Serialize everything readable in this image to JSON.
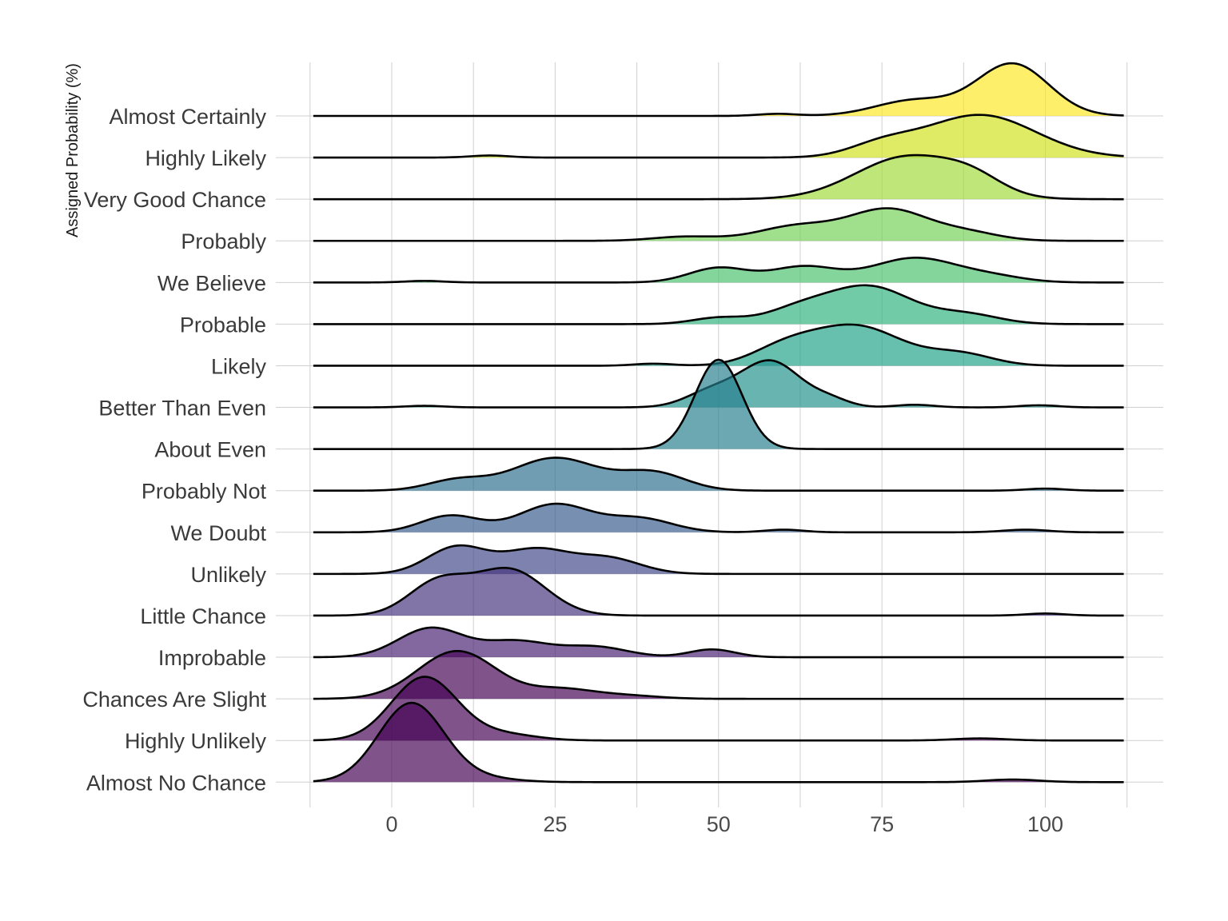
{
  "chart_data": {
    "type": "ridgeline",
    "title": "",
    "xlabel": "",
    "ylabel": "Assigned Probability (%)",
    "xlim": [
      -12,
      112
    ],
    "x_ticks": [
      0,
      25,
      50,
      75,
      100
    ],
    "x_minor_gridlines": [
      -12.5,
      12.5,
      37.5,
      62.5,
      87.5,
      112.5
    ],
    "grid": true,
    "legend": "none",
    "palette": "viridis",
    "fill_opacity": 0.68,
    "series": [
      {
        "name": "Almost Certainly",
        "color": "#FDE725",
        "peaks": [
          [
            59,
            0.04,
            3
          ],
          [
            80,
            0.3,
            6
          ],
          [
            95,
            1.0,
            5.5
          ]
        ]
      },
      {
        "name": "Highly Likely",
        "color": "#D0E11C",
        "peaks": [
          [
            15,
            0.04,
            3
          ],
          [
            75,
            0.22,
            5
          ],
          [
            90,
            0.82,
            8.5
          ]
        ]
      },
      {
        "name": "Very Good Chance",
        "color": "#A0DA39",
        "peaks": [
          [
            79,
            0.82,
            8
          ],
          [
            89,
            0.25,
            4.5
          ]
        ]
      },
      {
        "name": "Probably",
        "color": "#73D056",
        "peaks": [
          [
            45,
            0.08,
            5
          ],
          [
            62,
            0.28,
            6
          ],
          [
            76,
            0.6,
            6
          ],
          [
            88,
            0.15,
            5
          ]
        ]
      },
      {
        "name": "We Believe",
        "color": "#4AC16D",
        "peaks": [
          [
            5,
            0.03,
            3
          ],
          [
            50,
            0.28,
            4.5
          ],
          [
            63,
            0.3,
            5
          ],
          [
            80,
            0.47,
            6.5
          ],
          [
            92,
            0.1,
            5
          ]
        ]
      },
      {
        "name": "Probable",
        "color": "#2DB27D",
        "peaks": [
          [
            50,
            0.12,
            4
          ],
          [
            62,
            0.25,
            5
          ],
          [
            73,
            0.72,
            6.5
          ],
          [
            88,
            0.18,
            5
          ]
        ]
      },
      {
        "name": "Likely",
        "color": "#1FA187",
        "peaks": [
          [
            40,
            0.04,
            3
          ],
          [
            60,
            0.3,
            5
          ],
          [
            71,
            0.76,
            7
          ],
          [
            87,
            0.22,
            5
          ]
        ]
      },
      {
        "name": "Better Than Even",
        "color": "#21918C",
        "peaks": [
          [
            5,
            0.03,
            3
          ],
          [
            49,
            0.3,
            4
          ],
          [
            58,
            0.88,
            4.5
          ],
          [
            67,
            0.14,
            3
          ],
          [
            80,
            0.05,
            3
          ],
          [
            99,
            0.04,
            3
          ]
        ]
      },
      {
        "name": "About Even",
        "color": "#277F8E",
        "peaks": [
          [
            50,
            1.72,
            3.6
          ]
        ]
      },
      {
        "name": "Probably Not",
        "color": "#2E6E8E",
        "peaks": [
          [
            10,
            0.2,
            4.5
          ],
          [
            25,
            0.63,
            6.5
          ],
          [
            40,
            0.34,
            5
          ],
          [
            100,
            0.04,
            3
          ]
        ]
      },
      {
        "name": "We Doubt",
        "color": "#365C8D",
        "peaks": [
          [
            9,
            0.32,
            4.5
          ],
          [
            25,
            0.54,
            5.5
          ],
          [
            38,
            0.26,
            5
          ],
          [
            60,
            0.05,
            3
          ],
          [
            97,
            0.05,
            3.5
          ]
        ]
      },
      {
        "name": "Unlikely",
        "color": "#3F4788",
        "peaks": [
          [
            10,
            0.52,
            4.5
          ],
          [
            22,
            0.46,
            5
          ],
          [
            33,
            0.3,
            5
          ]
        ]
      },
      {
        "name": "Little Chance",
        "color": "#46337E",
        "peaks": [
          [
            7,
            0.62,
            4.5
          ],
          [
            18,
            0.88,
            5.5
          ],
          [
            100,
            0.04,
            3
          ]
        ]
      },
      {
        "name": "Improbable",
        "color": "#482173",
        "peaks": [
          [
            6,
            0.56,
            5
          ],
          [
            19,
            0.3,
            5
          ],
          [
            31,
            0.2,
            5
          ],
          [
            49,
            0.15,
            3.5
          ]
        ]
      },
      {
        "name": "Chances Are Slight",
        "color": "#440154",
        "peaks": [
          [
            10,
            0.92,
            6
          ],
          [
            26,
            0.18,
            5
          ],
          [
            36,
            0.06,
            5
          ]
        ]
      },
      {
        "name": "Highly Unlikely",
        "color": "#440154",
        "peaks": [
          [
            5,
            1.22,
            5
          ],
          [
            17,
            0.12,
            5
          ],
          [
            90,
            0.04,
            4
          ]
        ]
      },
      {
        "name": "Almost No Chance",
        "color": "#440154",
        "peaks": [
          [
            3,
            1.52,
            5
          ],
          [
            14,
            0.07,
            5
          ],
          [
            95,
            0.05,
            4
          ]
        ]
      }
    ]
  }
}
